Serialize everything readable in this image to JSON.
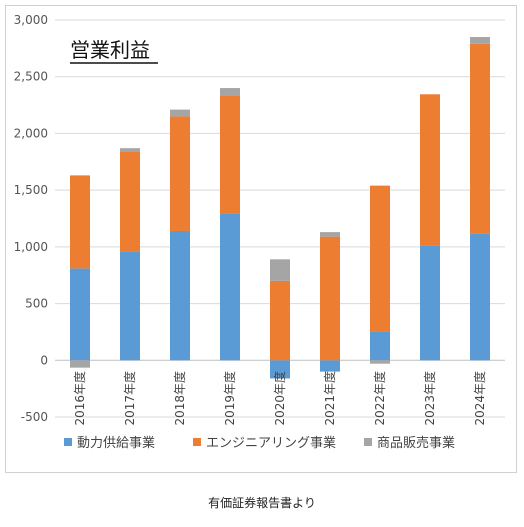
{
  "chart_data": {
    "type": "bar",
    "stacked": true,
    "title": "営業利益",
    "categories": [
      "2016年度",
      "2017年度",
      "2018年度",
      "2019年度",
      "2020年度",
      "2021年度",
      "2022年度",
      "2023年度",
      "2024年度"
    ],
    "series": [
      {
        "name": "動力供給事業",
        "color": "#5b9bd5",
        "values": [
          810,
          960,
          1140,
          1290,
          -160,
          -100,
          255,
          1015,
          1120
        ]
      },
      {
        "name": "エンジニアリング事業",
        "color": "#ed7d31",
        "values": [
          820,
          880,
          1010,
          1040,
          700,
          1090,
          1285,
          1330,
          1670
        ]
      },
      {
        "name": "商品販売事業",
        "color": "#a5a5a5",
        "values": [
          -65,
          30,
          60,
          70,
          190,
          40,
          -30,
          0,
          60
        ]
      }
    ],
    "yticks": [
      "3,000",
      "2,500",
      "2,000",
      "1,500",
      "1,000",
      "500",
      "0",
      "-500"
    ],
    "yticks_values": [
      3000,
      2500,
      2000,
      1500,
      1000,
      500,
      0,
      -500
    ],
    "negative_tick_color": "#ff0000",
    "ylim": [
      -500,
      3000
    ],
    "grid": true,
    "legend_position": "bottom"
  },
  "caption": "有価証券報告書より"
}
